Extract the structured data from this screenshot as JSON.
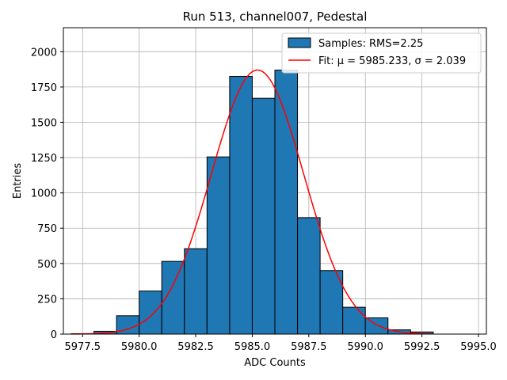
{
  "chart_data": {
    "type": "bar",
    "title": "Run 513, channel007, Pedestal",
    "xlabel": "ADC Counts",
    "ylabel": "Entries",
    "xlim": [
      5976.65,
      5995.35
    ],
    "ylim": [
      0,
      2170
    ],
    "xticks": [
      5977.5,
      5980.0,
      5982.5,
      5985.0,
      5987.5,
      5990.0,
      5992.5,
      5995.0
    ],
    "xtick_labels": [
      "5977.5",
      "5980.0",
      "5982.5",
      "5985.0",
      "5987.5",
      "5990.0",
      "5992.5",
      "5995.0"
    ],
    "yticks": [
      0,
      250,
      500,
      750,
      1000,
      1250,
      1500,
      1750,
      2000
    ],
    "ytick_labels": [
      "0",
      "250",
      "500",
      "750",
      "1000",
      "1250",
      "1500",
      "1750",
      "2000"
    ],
    "grid": true,
    "legend_position": "top-right",
    "histogram": {
      "name": "Samples: RMS=2.25",
      "color": "#1f77b4",
      "edge_color": "#000000",
      "bin_edges": [
        5977,
        5978,
        5979,
        5980,
        5981,
        5982,
        5983,
        5984,
        5985,
        5986,
        5987,
        5988,
        5989,
        5990,
        5991,
        5992,
        5993,
        5994,
        5995
      ],
      "counts": [
        3,
        20,
        130,
        305,
        515,
        605,
        1255,
        1825,
        1670,
        1870,
        825,
        450,
        190,
        115,
        30,
        15,
        0,
        0
      ]
    },
    "fit": {
      "name": "Fit: μ = 5985.233, σ = 2.039",
      "color": "#ff0000",
      "mu": 5985.233,
      "sigma": 2.039,
      "peak": 1870,
      "x_range": [
        5977,
        5993
      ]
    }
  }
}
